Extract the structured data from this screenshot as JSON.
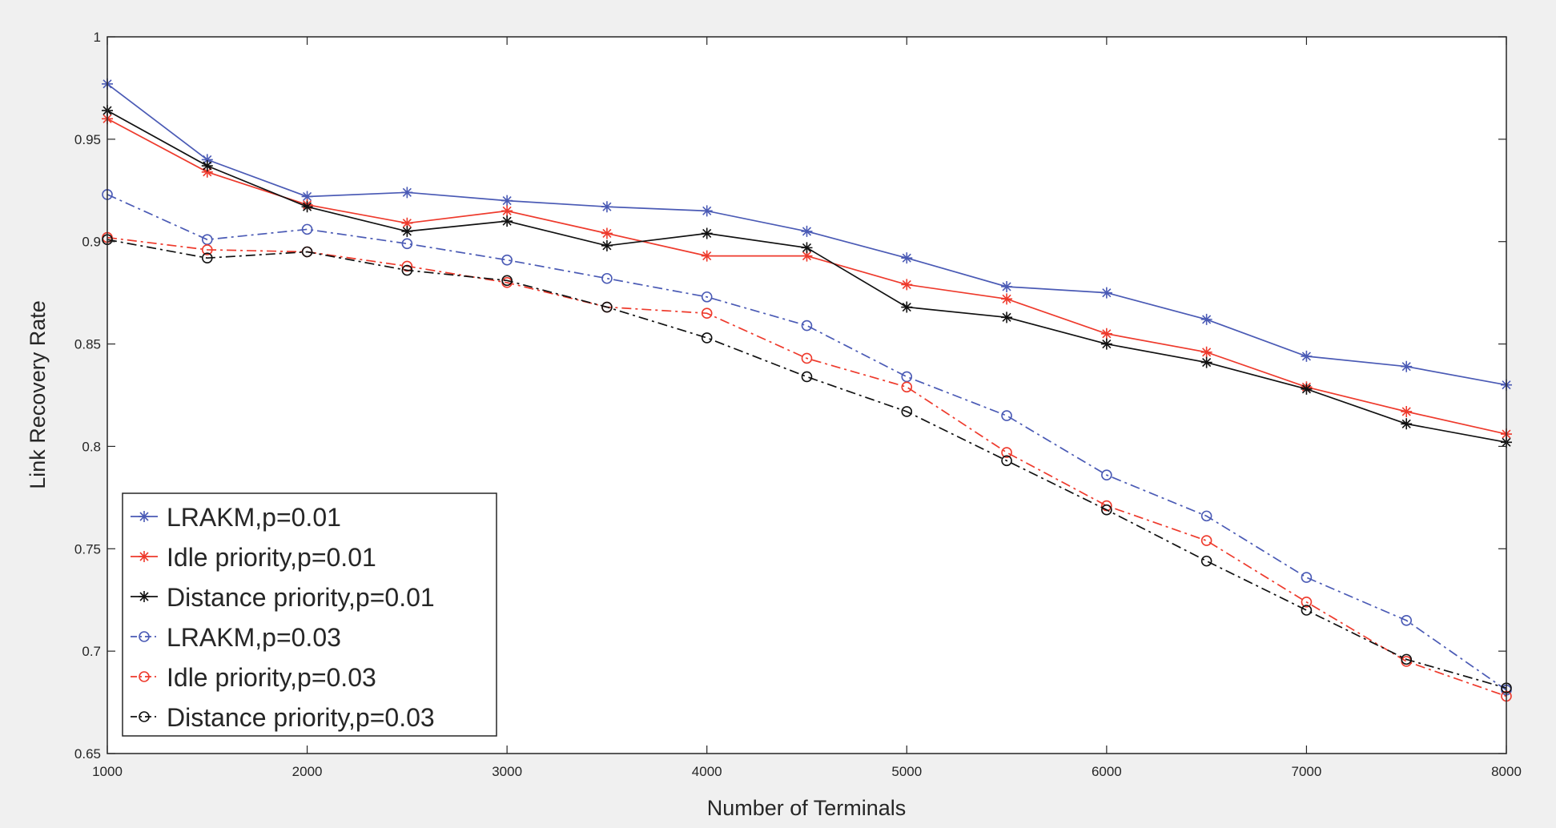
{
  "chart_data": {
    "type": "line",
    "title": "",
    "xlabel": "Number of Terminals",
    "ylabel": "Link Recovery Rate",
    "xlim": [
      1000,
      8000
    ],
    "ylim": [
      0.65,
      1.0
    ],
    "x_ticks": [
      1000,
      2000,
      3000,
      4000,
      5000,
      6000,
      7000,
      8000
    ],
    "x_tick_labels": [
      "1000",
      "2000",
      "3000",
      "4000",
      "5000",
      "6000",
      "7000",
      "8000"
    ],
    "y_ticks": [
      0.65,
      0.7,
      0.75,
      0.8,
      0.85,
      0.9,
      0.95,
      1.0
    ],
    "y_tick_labels": [
      "0.65",
      "0.7",
      "0.75",
      "0.8",
      "0.85",
      "0.9",
      "0.95",
      "1"
    ],
    "grid": false,
    "legend_position": "bottom-left",
    "x": [
      1000,
      1500,
      2000,
      2500,
      3000,
      3500,
      4000,
      4500,
      5000,
      5500,
      6000,
      6500,
      7000,
      7500,
      8000
    ],
    "series": [
      {
        "name": "LRAKM,p=0.01",
        "color": "#4a5ab5",
        "dash": "solid",
        "marker": "asterisk",
        "values": [
          0.977,
          0.94,
          0.922,
          0.924,
          0.92,
          0.917,
          0.915,
          0.905,
          0.892,
          0.878,
          0.875,
          0.862,
          0.844,
          0.839,
          0.83
        ]
      },
      {
        "name": "Idle priority,p=0.01",
        "color": "#ee3a2c",
        "dash": "solid",
        "marker": "asterisk",
        "values": [
          0.96,
          0.934,
          0.918,
          0.909,
          0.915,
          0.904,
          0.893,
          0.893,
          0.879,
          0.872,
          0.855,
          0.846,
          0.829,
          0.817,
          0.806
        ]
      },
      {
        "name": "Distance priority,p=0.01",
        "color": "#111111",
        "dash": "solid",
        "marker": "asterisk",
        "values": [
          0.964,
          0.937,
          0.917,
          0.905,
          0.91,
          0.898,
          0.904,
          0.897,
          0.868,
          0.863,
          0.85,
          0.841,
          0.828,
          0.811,
          0.802
        ]
      },
      {
        "name": "LRAKM,p=0.03",
        "color": "#4a5ab5",
        "dash": "dashdot",
        "marker": "circle",
        "values": [
          0.923,
          0.901,
          0.906,
          0.899,
          0.891,
          0.882,
          0.873,
          0.859,
          0.834,
          0.815,
          0.786,
          0.766,
          0.736,
          0.715,
          0.681
        ]
      },
      {
        "name": "Idle priority,p=0.03",
        "color": "#ee3a2c",
        "dash": "dashdot",
        "marker": "circle",
        "values": [
          0.902,
          0.896,
          0.895,
          0.888,
          0.88,
          0.868,
          0.865,
          0.843,
          0.829,
          0.797,
          0.771,
          0.754,
          0.724,
          0.695,
          0.678
        ]
      },
      {
        "name": "Distance priority,p=0.03",
        "color": "#111111",
        "dash": "dashdot",
        "marker": "circle",
        "values": [
          0.901,
          0.892,
          0.895,
          0.886,
          0.881,
          0.868,
          0.853,
          0.834,
          0.817,
          0.793,
          0.769,
          0.744,
          0.72,
          0.696,
          0.682
        ]
      }
    ]
  }
}
